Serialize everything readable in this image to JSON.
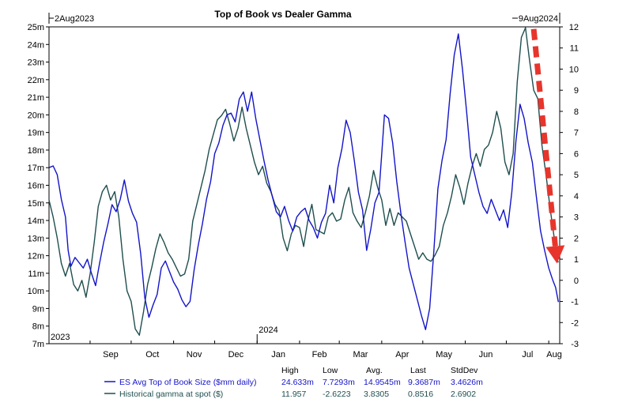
{
  "chart_data": {
    "type": "line",
    "title": "Top of Book vs Dealer Gamma",
    "range_start": "2Aug2023",
    "range_end": "9Aug2024",
    "x_range": [
      "2023-08-02",
      "2024-08-09"
    ],
    "x_month_labels": [
      "Sep",
      "Oct",
      "Nov",
      "Dec",
      "Jan",
      "Feb",
      "Mar",
      "Apr",
      "May",
      "Jun",
      "Jul",
      "Aug"
    ],
    "x_year_labels": [
      "2023",
      "2024"
    ],
    "y_left": {
      "min": 7,
      "max": 25,
      "step": 1,
      "tick_labels": [
        "7m",
        "8m",
        "9m",
        "10m",
        "11m",
        "12m",
        "13m",
        "14m",
        "15m",
        "16m",
        "17m",
        "18m",
        "19m",
        "20m",
        "21m",
        "22m",
        "23m",
        "24m",
        "25m"
      ]
    },
    "y_right": {
      "min": -3,
      "max": 12,
      "step": 1,
      "tick_labels": [
        "-3",
        "-2",
        "-1",
        "0",
        "1",
        "2",
        "3",
        "4",
        "5",
        "6",
        "7",
        "8",
        "9",
        "10",
        "11",
        "12"
      ]
    },
    "grid": false,
    "legend_position": "bottom-left",
    "series": [
      {
        "name": "ES Avg Top of Book Size ($mm daily)",
        "axis": "left",
        "color": "#1414c8",
        "points": [
          [
            "2023-08-02",
            17.0
          ],
          [
            "2023-08-05",
            17.1
          ],
          [
            "2023-08-08",
            16.6
          ],
          [
            "2023-08-11",
            15.2
          ],
          [
            "2023-08-14",
            14.2
          ],
          [
            "2023-08-16",
            12.3
          ],
          [
            "2023-08-18",
            11.4
          ],
          [
            "2023-08-21",
            11.9
          ],
          [
            "2023-08-24",
            11.6
          ],
          [
            "2023-08-27",
            11.3
          ],
          [
            "2023-08-30",
            11.8
          ],
          [
            "2023-09-02",
            11.0
          ],
          [
            "2023-09-05",
            10.3
          ],
          [
            "2023-09-08",
            11.6
          ],
          [
            "2023-09-11",
            12.8
          ],
          [
            "2023-09-14",
            13.8
          ],
          [
            "2023-09-17",
            14.9
          ],
          [
            "2023-09-20",
            14.5
          ],
          [
            "2023-09-23",
            15.2
          ],
          [
            "2023-09-26",
            16.3
          ],
          [
            "2023-09-29",
            15.1
          ],
          [
            "2023-10-02",
            14.4
          ],
          [
            "2023-10-05",
            13.9
          ],
          [
            "2023-10-08",
            12.1
          ],
          [
            "2023-10-11",
            9.6
          ],
          [
            "2023-10-14",
            8.5
          ],
          [
            "2023-10-17",
            9.2
          ],
          [
            "2023-10-20",
            9.8
          ],
          [
            "2023-10-23",
            11.3
          ],
          [
            "2023-10-26",
            11.7
          ],
          [
            "2023-10-29",
            11.1
          ],
          [
            "2023-11-01",
            10.5
          ],
          [
            "2023-11-04",
            10.1
          ],
          [
            "2023-11-07",
            9.5
          ],
          [
            "2023-11-10",
            9.1
          ],
          [
            "2023-11-13",
            9.4
          ],
          [
            "2023-11-16",
            11.2
          ],
          [
            "2023-11-19",
            12.6
          ],
          [
            "2023-11-22",
            13.8
          ],
          [
            "2023-11-25",
            15.2
          ],
          [
            "2023-11-28",
            16.2
          ],
          [
            "2023-12-01",
            17.8
          ],
          [
            "2023-12-04",
            18.4
          ],
          [
            "2023-12-07",
            19.4
          ],
          [
            "2023-12-10",
            20.0
          ],
          [
            "2023-12-13",
            20.1
          ],
          [
            "2023-12-16",
            19.6
          ],
          [
            "2023-12-19",
            20.9
          ],
          [
            "2023-12-22",
            21.3
          ],
          [
            "2023-12-25",
            20.2
          ],
          [
            "2023-12-28",
            21.3
          ],
          [
            "2023-12-31",
            19.8
          ],
          [
            "2024-01-03",
            18.6
          ],
          [
            "2024-01-06",
            17.4
          ],
          [
            "2024-01-09",
            16.3
          ],
          [
            "2024-01-12",
            15.4
          ],
          [
            "2024-01-15",
            14.5
          ],
          [
            "2024-01-18",
            14.2
          ],
          [
            "2024-01-21",
            14.8
          ],
          [
            "2024-01-24",
            14.0
          ],
          [
            "2024-01-27",
            13.4
          ],
          [
            "2024-01-30",
            14.2
          ],
          [
            "2024-02-02",
            14.5
          ],
          [
            "2024-02-05",
            14.7
          ],
          [
            "2024-02-08",
            14.0
          ],
          [
            "2024-02-11",
            13.6
          ],
          [
            "2024-02-14",
            13.0
          ],
          [
            "2024-02-17",
            13.9
          ],
          [
            "2024-02-20",
            14.4
          ],
          [
            "2024-02-23",
            16.0
          ],
          [
            "2024-02-26",
            15.0
          ],
          [
            "2024-02-29",
            17.0
          ],
          [
            "2024-03-03",
            18.1
          ],
          [
            "2024-03-06",
            19.7
          ],
          [
            "2024-03-09",
            19.0
          ],
          [
            "2024-03-12",
            17.4
          ],
          [
            "2024-03-15",
            15.6
          ],
          [
            "2024-03-18",
            14.6
          ],
          [
            "2024-03-21",
            12.3
          ],
          [
            "2024-03-24",
            13.5
          ],
          [
            "2024-03-27",
            15.0
          ],
          [
            "2024-03-30",
            15.6
          ],
          [
            "2024-04-01",
            17.8
          ],
          [
            "2024-04-03",
            20.0
          ],
          [
            "2024-04-06",
            19.8
          ],
          [
            "2024-04-09",
            18.4
          ],
          [
            "2024-04-12",
            16.2
          ],
          [
            "2024-04-15",
            14.4
          ],
          [
            "2024-04-18",
            12.8
          ],
          [
            "2024-04-21",
            11.3
          ],
          [
            "2024-04-24",
            10.4
          ],
          [
            "2024-04-27",
            9.5
          ],
          [
            "2024-04-30",
            8.6
          ],
          [
            "2024-05-03",
            7.8
          ],
          [
            "2024-05-06",
            9.0
          ],
          [
            "2024-05-09",
            12.2
          ],
          [
            "2024-05-12",
            15.8
          ],
          [
            "2024-05-15",
            17.4
          ],
          [
            "2024-05-18",
            18.6
          ],
          [
            "2024-05-21",
            21.2
          ],
          [
            "2024-05-24",
            23.4
          ],
          [
            "2024-05-27",
            24.6
          ],
          [
            "2024-05-30",
            22.6
          ],
          [
            "2024-06-02",
            20.2
          ],
          [
            "2024-06-05",
            17.6
          ],
          [
            "2024-06-08",
            16.6
          ],
          [
            "2024-06-11",
            15.6
          ],
          [
            "2024-06-14",
            14.8
          ],
          [
            "2024-06-17",
            14.4
          ],
          [
            "2024-06-20",
            15.2
          ],
          [
            "2024-06-23",
            14.6
          ],
          [
            "2024-06-26",
            14.0
          ],
          [
            "2024-06-29",
            14.6
          ],
          [
            "2024-07-02",
            13.6
          ],
          [
            "2024-07-05",
            15.6
          ],
          [
            "2024-07-08",
            18.5
          ],
          [
            "2024-07-11",
            20.6
          ],
          [
            "2024-07-14",
            19.8
          ],
          [
            "2024-07-17",
            18.4
          ],
          [
            "2024-07-20",
            17.3
          ],
          [
            "2024-07-23",
            15.3
          ],
          [
            "2024-07-26",
            13.4
          ],
          [
            "2024-07-29",
            12.3
          ],
          [
            "2024-08-01",
            11.3
          ],
          [
            "2024-08-04",
            10.6
          ],
          [
            "2024-08-06",
            10.2
          ],
          [
            "2024-08-08",
            9.37
          ]
        ]
      },
      {
        "name": "Historical gamma at spot ($)",
        "axis": "right",
        "color": "#1f4e4e",
        "points": [
          [
            "2023-08-02",
            3.8
          ],
          [
            "2023-08-05",
            3.0
          ],
          [
            "2023-08-08",
            2.0
          ],
          [
            "2023-08-11",
            0.8
          ],
          [
            "2023-08-14",
            0.2
          ],
          [
            "2023-08-17",
            0.8
          ],
          [
            "2023-08-20",
            -0.2
          ],
          [
            "2023-08-23",
            -0.5
          ],
          [
            "2023-08-26",
            0.0
          ],
          [
            "2023-08-29",
            -0.8
          ],
          [
            "2023-09-01",
            0.3
          ],
          [
            "2023-09-04",
            1.8
          ],
          [
            "2023-09-07",
            3.5
          ],
          [
            "2023-09-10",
            4.2
          ],
          [
            "2023-09-13",
            4.5
          ],
          [
            "2023-09-16",
            3.8
          ],
          [
            "2023-09-19",
            4.2
          ],
          [
            "2023-09-22",
            3.0
          ],
          [
            "2023-09-25",
            1.0
          ],
          [
            "2023-09-28",
            -0.5
          ],
          [
            "2023-10-01",
            -1.0
          ],
          [
            "2023-10-04",
            -2.3
          ],
          [
            "2023-10-07",
            -2.6
          ],
          [
            "2023-10-10",
            -1.5
          ],
          [
            "2023-10-13",
            -0.2
          ],
          [
            "2023-10-16",
            0.6
          ],
          [
            "2023-10-19",
            1.5
          ],
          [
            "2023-10-22",
            2.2
          ],
          [
            "2023-10-25",
            1.8
          ],
          [
            "2023-10-28",
            1.3
          ],
          [
            "2023-10-31",
            1.0
          ],
          [
            "2023-11-03",
            0.6
          ],
          [
            "2023-11-06",
            0.2
          ],
          [
            "2023-11-09",
            0.3
          ],
          [
            "2023-11-12",
            1.0
          ],
          [
            "2023-11-15",
            2.8
          ],
          [
            "2023-11-18",
            3.6
          ],
          [
            "2023-11-21",
            4.4
          ],
          [
            "2023-11-24",
            5.2
          ],
          [
            "2023-11-27",
            6.2
          ],
          [
            "2023-11-30",
            6.9
          ],
          [
            "2023-12-03",
            7.6
          ],
          [
            "2023-12-06",
            7.8
          ],
          [
            "2023-12-09",
            8.1
          ],
          [
            "2023-12-12",
            7.4
          ],
          [
            "2023-12-15",
            6.6
          ],
          [
            "2023-12-18",
            7.2
          ],
          [
            "2023-12-21",
            8.2
          ],
          [
            "2023-12-24",
            7.2
          ],
          [
            "2023-12-27",
            6.4
          ],
          [
            "2023-12-30",
            5.6
          ],
          [
            "2024-01-02",
            5.0
          ],
          [
            "2024-01-05",
            5.4
          ],
          [
            "2024-01-08",
            4.6
          ],
          [
            "2024-01-11",
            4.2
          ],
          [
            "2024-01-14",
            3.6
          ],
          [
            "2024-01-17",
            3.3
          ],
          [
            "2024-01-20",
            2.0
          ],
          [
            "2024-01-23",
            1.4
          ],
          [
            "2024-01-26",
            2.2
          ],
          [
            "2024-01-29",
            2.6
          ],
          [
            "2024-02-01",
            2.5
          ],
          [
            "2024-02-04",
            1.6
          ],
          [
            "2024-02-07",
            2.8
          ],
          [
            "2024-02-10",
            3.6
          ],
          [
            "2024-02-13",
            2.4
          ],
          [
            "2024-02-16",
            2.3
          ],
          [
            "2024-02-19",
            2.2
          ],
          [
            "2024-02-22",
            3.0
          ],
          [
            "2024-02-25",
            3.2
          ],
          [
            "2024-02-28",
            2.8
          ],
          [
            "2024-03-02",
            2.9
          ],
          [
            "2024-03-05",
            3.8
          ],
          [
            "2024-03-08",
            4.4
          ],
          [
            "2024-03-11",
            3.2
          ],
          [
            "2024-03-14",
            2.8
          ],
          [
            "2024-03-17",
            2.5
          ],
          [
            "2024-03-20",
            3.2
          ],
          [
            "2024-03-23",
            4.0
          ],
          [
            "2024-03-26",
            5.2
          ],
          [
            "2024-03-29",
            4.4
          ],
          [
            "2024-04-01",
            3.8
          ],
          [
            "2024-04-04",
            2.6
          ],
          [
            "2024-04-07",
            3.4
          ],
          [
            "2024-04-10",
            2.6
          ],
          [
            "2024-04-13",
            3.2
          ],
          [
            "2024-04-16",
            3.0
          ],
          [
            "2024-04-19",
            2.8
          ],
          [
            "2024-04-22",
            2.2
          ],
          [
            "2024-04-25",
            1.6
          ],
          [
            "2024-04-28",
            1.0
          ],
          [
            "2024-05-01",
            1.3
          ],
          [
            "2024-05-04",
            1.0
          ],
          [
            "2024-05-07",
            0.9
          ],
          [
            "2024-05-10",
            1.2
          ],
          [
            "2024-05-13",
            1.6
          ],
          [
            "2024-05-16",
            2.6
          ],
          [
            "2024-05-19",
            3.2
          ],
          [
            "2024-05-22",
            4.0
          ],
          [
            "2024-05-25",
            5.0
          ],
          [
            "2024-05-28",
            4.4
          ],
          [
            "2024-05-31",
            3.6
          ],
          [
            "2024-06-03",
            4.6
          ],
          [
            "2024-06-06",
            5.4
          ],
          [
            "2024-06-09",
            6.0
          ],
          [
            "2024-06-12",
            5.4
          ],
          [
            "2024-06-15",
            6.2
          ],
          [
            "2024-06-18",
            6.4
          ],
          [
            "2024-06-21",
            7.0
          ],
          [
            "2024-06-24",
            8.0
          ],
          [
            "2024-06-27",
            7.2
          ],
          [
            "2024-06-30",
            5.6
          ],
          [
            "2024-07-03",
            5.0
          ],
          [
            "2024-07-06",
            6.0
          ],
          [
            "2024-07-09",
            9.4
          ],
          [
            "2024-07-12",
            11.5
          ],
          [
            "2024-07-15",
            11.96
          ],
          [
            "2024-07-18",
            10.4
          ],
          [
            "2024-07-21",
            9.0
          ],
          [
            "2024-07-24",
            8.6
          ],
          [
            "2024-07-27",
            6.4
          ],
          [
            "2024-07-30",
            5.0
          ],
          [
            "2024-08-02",
            3.4
          ],
          [
            "2024-08-05",
            2.0
          ],
          [
            "2024-08-07",
            1.0
          ],
          [
            "2024-08-08",
            0.85
          ]
        ]
      }
    ],
    "stats": {
      "headers": [
        "High",
        "Low",
        "Avg.",
        "Last",
        "StdDev"
      ],
      "rows": [
        {
          "name": "ES Avg Top of Book Size ($mm daily)",
          "values": [
            "24.633m",
            "7.7293m",
            "14.9545m",
            "9.3687m",
            "3.4626m"
          ]
        },
        {
          "name": "Historical gamma at spot ($)",
          "values": [
            "11.957",
            "-2.6223",
            "3.8305",
            "0.8516",
            "2.6902"
          ]
        }
      ]
    },
    "annotation": {
      "type": "dashed-arrow",
      "color": "#e8352c",
      "from": [
        "2024-07-21",
        11.9
      ],
      "to": [
        "2024-08-07",
        0.8
      ],
      "axis": "right"
    }
  }
}
